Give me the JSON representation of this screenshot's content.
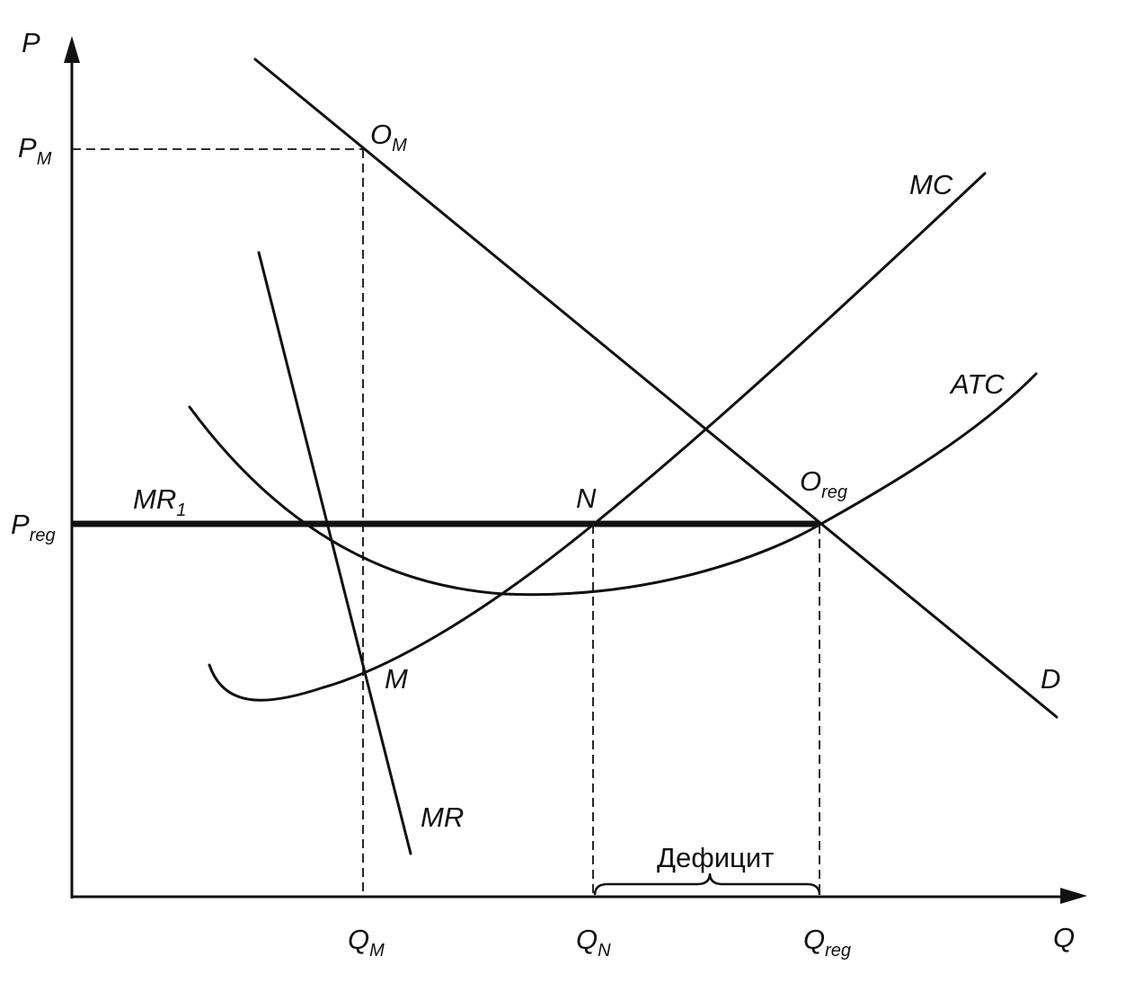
{
  "axes": {
    "y_label": "P",
    "x_label": "Q"
  },
  "price_labels": {
    "monopoly": {
      "main": "P",
      "sub": "M"
    },
    "regulated": {
      "main": "P",
      "sub": "reg"
    }
  },
  "quantity_labels": {
    "monopoly": {
      "main": "Q",
      "sub": "M"
    },
    "normal": {
      "main": "Q",
      "sub": "N"
    },
    "regulated": {
      "main": "Q",
      "sub": "reg"
    }
  },
  "curve_labels": {
    "demand": "D",
    "marginal_cost": "MC",
    "average_total_cost": "ATC",
    "marginal_revenue": "MR",
    "regulated_marginal_revenue": {
      "main": "MR",
      "sub": "1"
    }
  },
  "point_labels": {
    "monopoly_optimum": {
      "main": "O",
      "sub": "M"
    },
    "regulated_optimum": {
      "main": "O",
      "sub": "reg"
    },
    "normal_point": "N",
    "mr_mc_intersection": "M"
  },
  "annotations": {
    "deficit": "Дефицит"
  }
}
